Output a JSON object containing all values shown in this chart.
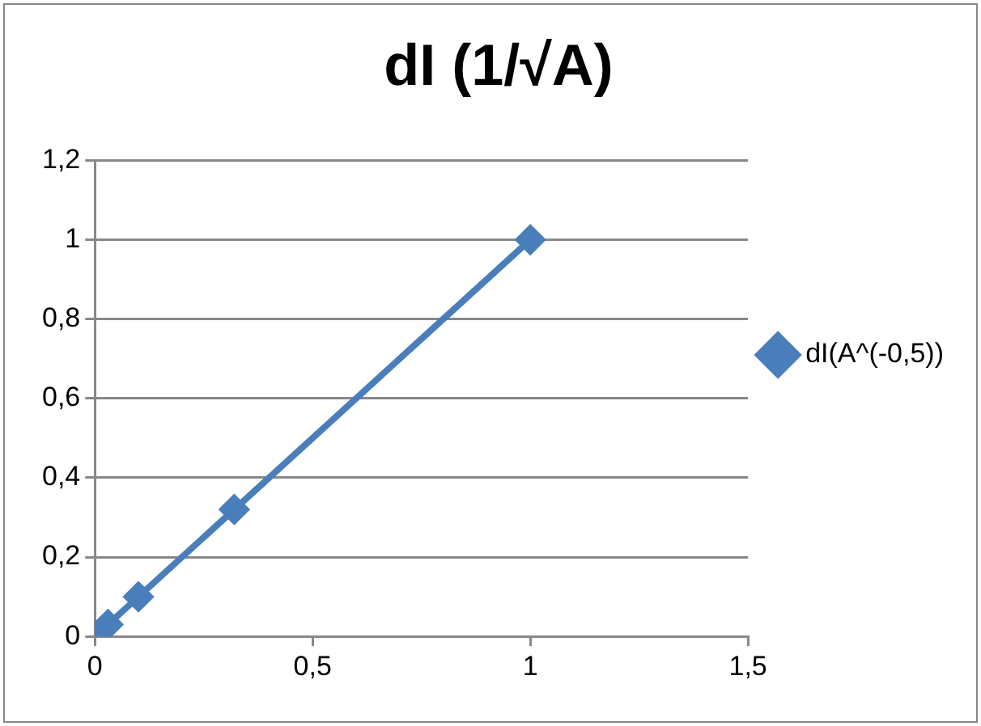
{
  "chart_data": {
    "type": "line",
    "title": "dI (1/√A)",
    "x": [
      0,
      0.03,
      0.1,
      0.32,
      1
    ],
    "series": [
      {
        "name": "dI(A^(-0,5))",
        "color": "#4a7ebb",
        "values": [
          0,
          0.03,
          0.1,
          0.32,
          1
        ]
      }
    ],
    "xlim": [
      0,
      1.5
    ],
    "xticks": [
      0,
      {
        "value": 0.5,
        "label": "0,5"
      },
      1,
      {
        "value": 1.5,
        "label": "1,5"
      }
    ],
    "ylim": [
      0,
      1.2
    ],
    "yticks": [
      0,
      {
        "value": 0.2,
        "label": "0,2"
      },
      {
        "value": 0.4,
        "label": "0,4"
      },
      {
        "value": 0.6,
        "label": "0,6"
      },
      {
        "value": 0.8,
        "label": "0,8"
      },
      1,
      {
        "value": 1.2,
        "label": "1,2"
      }
    ],
    "grid": "y",
    "legend": "right",
    "marker": "diamond",
    "line_style": "solid"
  }
}
